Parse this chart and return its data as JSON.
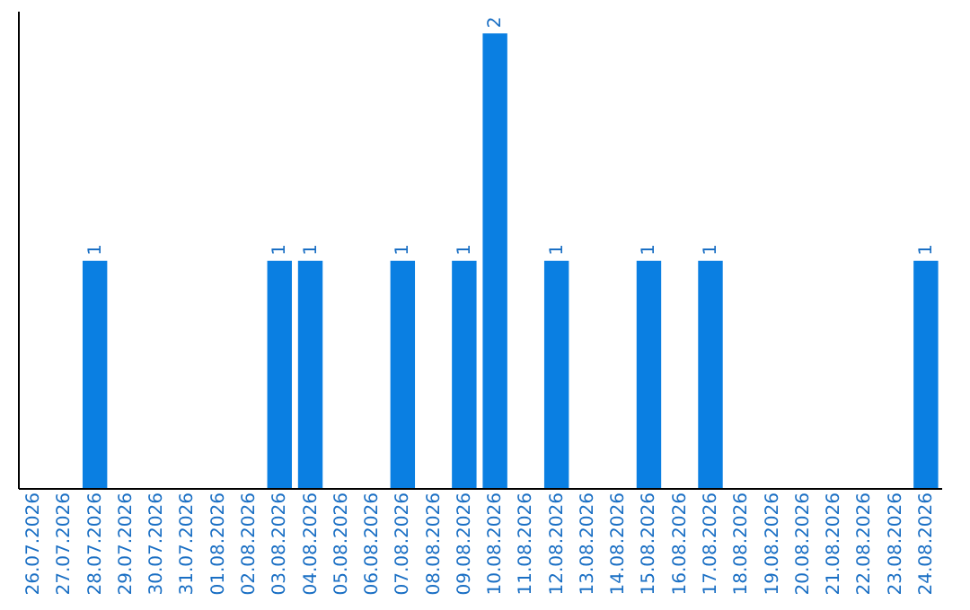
{
  "chart_data": {
    "type": "bar",
    "categories": [
      "26.07.2026",
      "27.07.2026",
      "28.07.2026",
      "29.07.2026",
      "30.07.2026",
      "31.07.2026",
      "01.08.2026",
      "02.08.2026",
      "03.08.2026",
      "04.08.2026",
      "05.08.2026",
      "06.08.2026",
      "07.08.2026",
      "08.08.2026",
      "09.08.2026",
      "10.08.2026",
      "11.08.2026",
      "12.08.2026",
      "13.08.2026",
      "14.08.2026",
      "15.08.2026",
      "16.08.2026",
      "17.08.2026",
      "18.08.2026",
      "19.08.2026",
      "20.08.2026",
      "21.08.2026",
      "22.08.2026",
      "23.08.2026",
      "24.08.2026"
    ],
    "values": [
      0,
      0,
      1,
      0,
      0,
      0,
      0,
      0,
      1,
      1,
      0,
      0,
      1,
      0,
      1,
      2,
      0,
      1,
      0,
      0,
      1,
      0,
      1,
      0,
      0,
      0,
      0,
      0,
      0,
      1
    ],
    "value_labels": [
      null,
      null,
      "1",
      null,
      null,
      null,
      null,
      null,
      "1",
      "1",
      null,
      null,
      "1",
      null,
      "1",
      "2",
      null,
      "1",
      null,
      null,
      "1",
      null,
      "1",
      null,
      null,
      null,
      null,
      null,
      null,
      "1"
    ],
    "color": "#0a7fe2",
    "ylim": [
      0,
      2.1
    ],
    "tick_labels": "x",
    "grid": false
  }
}
